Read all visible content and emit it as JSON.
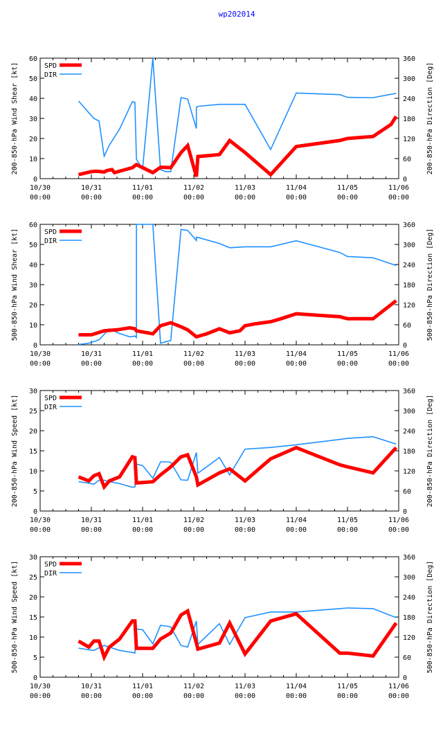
{
  "page_title": "wp202014",
  "chart_data": [
    {
      "type": "line",
      "title": "wp202014",
      "ylabel": "200-850-hPa Wind Shear [kt]",
      "y2label": "200-850-hPa Direction [Deg]",
      "xlim": [
        0,
        7
      ],
      "ylim": [
        0,
        60
      ],
      "y_ticks": [
        0,
        10,
        20,
        30,
        40,
        50,
        60
      ],
      "y2lim": [
        0,
        360
      ],
      "y2_ticks": [
        0,
        60,
        120,
        180,
        240,
        300,
        360
      ],
      "x_tick_labels": [
        [
          "10/30",
          "00:00"
        ],
        [
          "10/31",
          "00:00"
        ],
        [
          "11/01",
          "00:00"
        ],
        [
          "11/02",
          "00:00"
        ],
        [
          "11/03",
          "00:00"
        ],
        [
          "11/04",
          "00:00"
        ],
        [
          "11/05",
          "00:00"
        ],
        [
          "11/06",
          "00:00"
        ]
      ],
      "legend": [
        "SPD",
        "DIR"
      ],
      "series": [
        {
          "name": "SPD",
          "axis": "left",
          "color": "#ff0000",
          "x": [
            0.75,
            1.0,
            1.1,
            1.25,
            1.3,
            1.4,
            1.45,
            1.8,
            1.88,
            2.2,
            2.35,
            2.55,
            2.75,
            2.88,
            3.05,
            3.08,
            3.5,
            3.7,
            4.0,
            4.5,
            5.0,
            5.85,
            6.0,
            6.5,
            6.85,
            6.95
          ],
          "y": [
            2.0,
            3.5,
            3.7,
            3.3,
            4.0,
            4.5,
            3.0,
            5.5,
            7.0,
            3.0,
            5.7,
            5.5,
            13.0,
            16.5,
            1.0,
            11.0,
            12.0,
            19.0,
            13.0,
            2.0,
            16.0,
            19.0,
            20.0,
            21.0,
            27.0,
            31.0
          ]
        },
        {
          "name": "DIR",
          "axis": "right",
          "color": "#1e90ff",
          "x": [
            0.75,
            0.95,
            1.05,
            1.15,
            1.25,
            1.35,
            1.55,
            1.8,
            1.85,
            1.88,
            2.0,
            2.2,
            2.35,
            2.45,
            2.55,
            2.75,
            2.88,
            3.05,
            3.05,
            3.08,
            3.5,
            3.7,
            4.0,
            4.5,
            5.0,
            5.85,
            6.0,
            6.5,
            6.95
          ],
          "y": [
            232,
            197,
            180,
            172,
            67,
            100,
            148,
            230,
            228,
            58,
            29,
            360,
            27,
            21,
            21,
            242,
            238,
            150,
            213,
            216,
            222,
            222,
            222,
            87,
            256,
            251,
            243,
            242,
            255
          ]
        }
      ]
    },
    {
      "type": "line",
      "ylabel": "500-850-hPa Wind Shear [kt]",
      "y2label": "500-850-hPa Direction [Deg]",
      "xlim": [
        0,
        7
      ],
      "ylim": [
        0,
        60
      ],
      "y_ticks": [
        0,
        10,
        20,
        30,
        40,
        50,
        60
      ],
      "y2lim": [
        0,
        360
      ],
      "y2_ticks": [
        0,
        60,
        120,
        180,
        240,
        300,
        360
      ],
      "x_tick_labels": [
        [
          "10/30",
          "00:00"
        ],
        [
          "10/31",
          "00:00"
        ],
        [
          "11/01",
          "00:00"
        ],
        [
          "11/02",
          "00:00"
        ],
        [
          "11/03",
          "00:00"
        ],
        [
          "11/04",
          "00:00"
        ],
        [
          "11/05",
          "00:00"
        ],
        [
          "11/06",
          "00:00"
        ]
      ],
      "legend": [
        "SPD",
        "DIR"
      ],
      "series": [
        {
          "name": "SPD",
          "axis": "left",
          "color": "#ff0000",
          "x": [
            0.75,
            1.0,
            1.25,
            1.5,
            1.75,
            1.85,
            1.88,
            2.2,
            2.35,
            2.55,
            2.75,
            2.88,
            3.05,
            3.25,
            3.5,
            3.7,
            3.9,
            4.0,
            4.2,
            4.5,
            4.7,
            5.0,
            5.85,
            6.0,
            6.5,
            6.95
          ],
          "y": [
            5.0,
            5.0,
            7.0,
            7.5,
            8.5,
            8.0,
            7.0,
            5.5,
            9.5,
            11.0,
            9.0,
            7.5,
            4.0,
            5.5,
            8.0,
            6.0,
            7.0,
            9.5,
            10.5,
            11.5,
            13.0,
            15.5,
            14.0,
            13.0,
            13.0,
            22.0
          ]
        },
        {
          "name": "DIR",
          "axis": "right",
          "color": "#1e90ff",
          "x": [
            0.75,
            0.95,
            1.15,
            1.35,
            1.55,
            1.75,
            1.85,
            1.88,
            1.88,
            2.0,
            2.1,
            2.2,
            2.35,
            2.55,
            2.75,
            2.88,
            3.05,
            3.05,
            3.1,
            3.5,
            3.7,
            4.0,
            4.5,
            5.0,
            5.85,
            6.0,
            6.5,
            6.95
          ],
          "y": [
            1,
            5,
            15,
            48,
            34,
            24,
            26,
            22,
            360,
            360,
            360,
            360,
            5,
            13,
            345,
            342,
            312,
            322,
            320,
            303,
            290,
            293,
            293,
            311,
            276,
            264,
            260,
            237
          ]
        }
      ]
    },
    {
      "type": "line",
      "ylabel": "200-850-hPa Wind Speed [kt]",
      "y2label": "200-850-hPa Direction [Deg]",
      "xlim": [
        0,
        7
      ],
      "ylim": [
        0,
        30
      ],
      "y_ticks": [
        0,
        5,
        10,
        15,
        20,
        25,
        30
      ],
      "y2lim": [
        0,
        360
      ],
      "y2_ticks": [
        0,
        60,
        120,
        180,
        240,
        300,
        360
      ],
      "x_tick_labels": [
        [
          "10/30",
          "00:00"
        ],
        [
          "10/31",
          "00:00"
        ],
        [
          "11/01",
          "00:00"
        ],
        [
          "11/02",
          "00:00"
        ],
        [
          "11/03",
          "00:00"
        ],
        [
          "11/04",
          "00:00"
        ],
        [
          "11/05",
          "00:00"
        ],
        [
          "11/06",
          "00:00"
        ]
      ],
      "legend": [
        "SPD",
        "DIR"
      ],
      "series": [
        {
          "name": "SPD",
          "axis": "left",
          "color": "#ff0000",
          "x": [
            0.75,
            0.95,
            1.05,
            1.15,
            1.25,
            1.35,
            1.55,
            1.8,
            1.85,
            1.88,
            1.88,
            2.2,
            2.35,
            2.55,
            2.75,
            2.88,
            3.05,
            3.08,
            3.5,
            3.7,
            4.0,
            4.5,
            5.0,
            5.85,
            6.0,
            6.5,
            6.95
          ],
          "y": [
            8.5,
            7.5,
            8.8,
            9.3,
            6.0,
            7.5,
            8.5,
            13.5,
            13.3,
            7.0,
            7.0,
            7.3,
            9.0,
            11.0,
            13.5,
            14.0,
            8.5,
            6.5,
            9.5,
            10.5,
            7.5,
            13.0,
            15.8,
            11.5,
            11.0,
            9.5,
            15.8
          ]
        },
        {
          "name": "DIR",
          "axis": "right",
          "color": "#1e90ff",
          "x": [
            0.75,
            0.95,
            1.05,
            1.15,
            1.25,
            1.35,
            1.55,
            1.8,
            1.85,
            1.88,
            2.0,
            2.2,
            2.35,
            2.5,
            2.55,
            2.75,
            2.88,
            3.05,
            3.05,
            3.08,
            3.5,
            3.7,
            4.0,
            4.5,
            5.0,
            5.85,
            6.0,
            6.5,
            6.95
          ],
          "y": [
            88,
            83,
            80,
            92,
            92,
            88,
            82,
            71,
            72,
            140,
            136,
            98,
            147,
            147,
            145,
            93,
            92,
            175,
            175,
            113,
            160,
            108,
            185,
            190,
            198,
            214,
            217,
            222,
            200
          ]
        }
      ]
    },
    {
      "type": "line",
      "ylabel": "500-850-hPa Wind Speed [kt]",
      "y2label": "500-850-hPa Direction [Deg]",
      "xlim": [
        0,
        7
      ],
      "ylim": [
        0,
        30
      ],
      "y_ticks": [
        0,
        5,
        10,
        15,
        20,
        25,
        30
      ],
      "y2lim": [
        0,
        360
      ],
      "y2_ticks": [
        0,
        60,
        120,
        180,
        240,
        300,
        360
      ],
      "x_tick_labels": [
        [
          "10/30",
          "00:00"
        ],
        [
          "10/31",
          "00:00"
        ],
        [
          "11/01",
          "00:00"
        ],
        [
          "11/02",
          "00:00"
        ],
        [
          "11/03",
          "00:00"
        ],
        [
          "11/04",
          "00:00"
        ],
        [
          "11/05",
          "00:00"
        ],
        [
          "11/06",
          "00:00"
        ]
      ],
      "legend": [
        "SPD",
        "DIR"
      ],
      "series": [
        {
          "name": "SPD",
          "axis": "left",
          "color": "#ff0000",
          "x": [
            0.75,
            0.95,
            1.05,
            1.15,
            1.25,
            1.35,
            1.55,
            1.8,
            1.85,
            1.88,
            1.88,
            2.2,
            2.35,
            2.55,
            2.75,
            2.88,
            3.05,
            3.08,
            3.5,
            3.7,
            4.0,
            4.5,
            5.0,
            5.85,
            6.0,
            6.5,
            6.95
          ],
          "y": [
            9.0,
            7.5,
            9.0,
            9.0,
            5.0,
            7.5,
            9.5,
            14.0,
            14.0,
            7.2,
            7.2,
            7.2,
            9.5,
            11.0,
            15.5,
            16.5,
            8.5,
            7.0,
            8.5,
            13.5,
            5.8,
            14.0,
            15.8,
            6.0,
            6.0,
            5.3,
            13.5
          ]
        },
        {
          "name": "DIR",
          "axis": "right",
          "color": "#1e90ff",
          "x": [
            0.75,
            0.95,
            1.05,
            1.15,
            1.25,
            1.35,
            1.55,
            1.8,
            1.85,
            1.88,
            2.0,
            2.2,
            2.35,
            2.5,
            2.55,
            2.75,
            2.88,
            3.05,
            3.05,
            3.08,
            3.5,
            3.7,
            4.0,
            4.5,
            5.0,
            5.85,
            6.0,
            6.5,
            6.95
          ],
          "y": [
            87,
            82,
            80,
            88,
            95,
            90,
            80,
            74,
            72,
            144,
            142,
            100,
            155,
            152,
            150,
            95,
            90,
            168,
            168,
            98,
            160,
            98,
            178,
            195,
            195,
            205,
            207,
            205,
            178
          ]
        }
      ]
    }
  ]
}
